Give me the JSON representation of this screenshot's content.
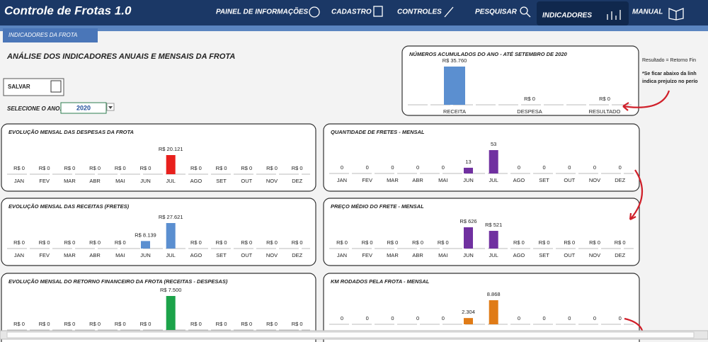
{
  "header": {
    "title": "Controle de Frotas 1.0",
    "nav": [
      "PAINEL DE INFORMAÇÕES",
      "CADASTRO",
      "CONTROLES",
      "PESQUISAR",
      "INDICADORES",
      "MANUAL"
    ]
  },
  "tab": "INDICADORES DA FROTA",
  "heading": "ANÁLISE DOS INDICADORES ANUAIS E MENSAIS DA FROTA",
  "save_button": "SALVAR",
  "year_selector": {
    "label": "SELECIONE O ANO:",
    "value": "2020"
  },
  "notes": [
    "Resultado = Retorno Fin",
    "*Se ficar abaixo da linh",
    "indica prejuízo no perío"
  ],
  "chart_data": [
    {
      "type": "bar",
      "title": "NÚMEROS ACUMULADOS DO ANO - ATÉ SETEMBRO DE 2020",
      "color": "#5b8fd0",
      "categories": [
        "RECEITA",
        "DESPESA",
        "RESULTADO"
      ],
      "values": [
        35760,
        0,
        0
      ],
      "value_labels": [
        "R$ 35.760",
        "R$ 0",
        "R$ 0"
      ]
    },
    {
      "type": "bar",
      "title": "EVOLUÇÃO MENSAL DAS DESPESAS DA FROTA",
      "color": "#e8201d",
      "categories": [
        "JAN",
        "FEV",
        "MAR",
        "ABR",
        "MAI",
        "JUN",
        "JUL",
        "AGO",
        "SET",
        "OUT",
        "NOV",
        "DEZ"
      ],
      "values": [
        0,
        0,
        0,
        0,
        0,
        0,
        20121,
        0,
        0,
        0,
        0,
        0
      ],
      "value_labels": [
        "R$ 0",
        "R$ 0",
        "R$ 0",
        "R$ 0",
        "R$ 0",
        "R$ 0",
        "R$ 20.121",
        "R$ 0",
        "R$ 0",
        "R$ 0",
        "R$ 0",
        "R$ 0"
      ]
    },
    {
      "type": "bar",
      "title": "QUANTIDADE DE FRETES - MENSAL",
      "color": "#7030a0",
      "categories": [
        "JAN",
        "FEV",
        "MAR",
        "ABR",
        "MAI",
        "JUN",
        "JUL",
        "AGO",
        "SET",
        "OUT",
        "NOV",
        "DEZ"
      ],
      "values": [
        0,
        0,
        0,
        0,
        0,
        13,
        53,
        0,
        0,
        0,
        0,
        0
      ]
    },
    {
      "type": "bar",
      "title": "EVOLUÇÃO MENSAL DAS RECEITAS (FRETES)",
      "color": "#5b8fd0",
      "categories": [
        "JAN",
        "FEV",
        "MAR",
        "ABR",
        "MAI",
        "JUN",
        "JUL",
        "AGO",
        "SET",
        "OUT",
        "NOV",
        "DEZ"
      ],
      "values": [
        0,
        0,
        0,
        0,
        0,
        8139,
        27621,
        0,
        0,
        0,
        0,
        0
      ],
      "value_labels": [
        "R$ 0",
        "R$ 0",
        "R$ 0",
        "R$ 0",
        "R$ 0",
        "R$ 8.139",
        "R$ 27.621",
        "R$ 0",
        "R$ 0",
        "R$ 0",
        "R$ 0",
        "R$ 0"
      ]
    },
    {
      "type": "bar",
      "title": "PREÇO MÉDIO DO FRETE - MENSAL",
      "color": "#7030a0",
      "categories": [
        "JAN",
        "FEV",
        "MAR",
        "ABR",
        "MAI",
        "JUN",
        "JUL",
        "AGO",
        "SET",
        "OUT",
        "NOV",
        "DEZ"
      ],
      "values": [
        0,
        0,
        0,
        0,
        0,
        626,
        521,
        0,
        0,
        0,
        0,
        0
      ],
      "value_labels": [
        "R$ 0",
        "R$ 0",
        "R$ 0",
        "R$ 0",
        "R$ 0",
        "R$ 626",
        "R$ 521",
        "R$ 0",
        "R$ 0",
        "R$ 0",
        "R$ 0",
        "R$ 0"
      ]
    },
    {
      "type": "bar",
      "title": "EVOLUÇÃO MENSAL DO RETORNO FINANCEIRO DA FROTA (RECEITAS - DESPESAS)",
      "color": "#1ca34a",
      "values": [
        0,
        0,
        0,
        0,
        0,
        0,
        7500,
        0,
        0,
        0,
        0,
        0
      ],
      "value_labels": [
        "R$ 0",
        "R$ 0",
        "R$ 0",
        "R$ 0",
        "R$ 0",
        "R$ 0",
        "R$ 7.500",
        "R$ 0",
        "R$ 0",
        "R$ 0",
        "R$ 0",
        "R$ 0"
      ]
    },
    {
      "type": "bar",
      "title": "KM RODADOS PELA FROTA - MENSAL",
      "color": "#e07b16",
      "values": [
        0,
        0,
        0,
        0,
        0,
        2304,
        8868,
        0,
        0,
        0,
        0,
        0
      ],
      "value_labels": [
        "0",
        "0",
        "0",
        "0",
        "0",
        "2.304",
        "8.868",
        "0",
        "0",
        "0",
        "0",
        "0"
      ]
    }
  ]
}
